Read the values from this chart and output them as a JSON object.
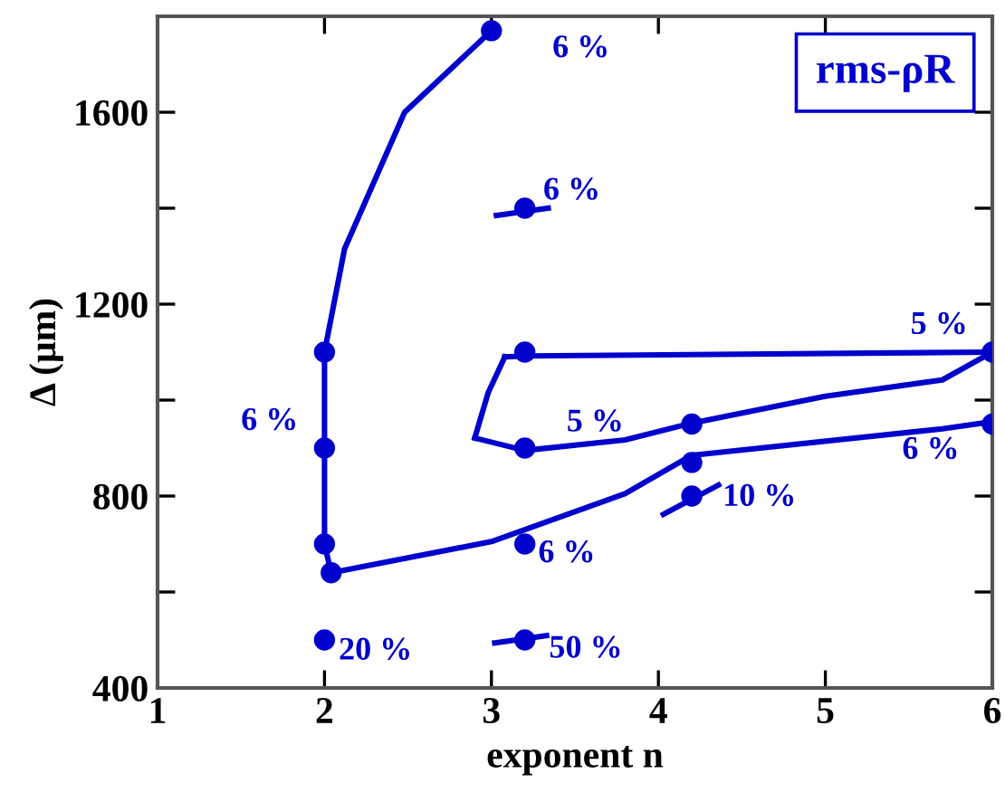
{
  "chart_data": {
    "type": "line",
    "xlabel": "exponent n",
    "ylabel": "Δ (μm)",
    "xlim": [
      1,
      6
    ],
    "ylim": [
      400,
      1800
    ],
    "xticks": [
      1,
      2,
      3,
      4,
      5,
      6
    ],
    "yticks": [
      400,
      {
        "value": 600,
        "label": null
      },
      800,
      {
        "value": 1000,
        "label": null
      },
      1200,
      {
        "value": 1400,
        "label": null
      },
      1600
    ],
    "grid": false,
    "legend": false,
    "series": [
      {
        "color": "#0000cc",
        "x": [
          3.0,
          2.48,
          2.12,
          2.0,
          2.0,
          2.0,
          2.04,
          3.0,
          3.8,
          4.2,
          5.7,
          6.0
        ],
        "values": [
          1770,
          1600,
          1315,
          1100,
          900,
          700,
          640,
          705,
          805,
          885,
          940,
          955
        ]
      },
      {
        "color": "#0000cc",
        "x": [
          3.08,
          3.2,
          6.0
        ],
        "values": [
          1090,
          1092,
          1100
        ]
      },
      {
        "color": "#0000cc",
        "x": [
          2.9,
          2.98,
          3.08
        ],
        "values": [
          921,
          1015,
          1090
        ]
      },
      {
        "color": "#0000cc",
        "x": [
          2.9,
          3.2,
          3.8,
          4.2,
          5.0,
          5.7,
          6.0
        ],
        "values": [
          921,
          895,
          917,
          952,
          1008,
          1042,
          1100
        ]
      },
      {
        "color": "#0000cc",
        "x": [
          3.03,
          3.34
        ],
        "values": [
          1385,
          1400
        ]
      },
      {
        "color": "#0000cc",
        "x": [
          3.02,
          3.33
        ],
        "values": [
          494,
          509
        ]
      },
      {
        "color": "#0000cc",
        "x": [
          4.03,
          4.36
        ],
        "values": [
          762,
          823
        ]
      },
      {
        "type": "scatter",
        "color": "#0000cc",
        "marker": "circle",
        "x": [
          3.0,
          3.2,
          2.0,
          2.0,
          2.0,
          2.04,
          3.2,
          3.2,
          3.2,
          2.0,
          3.2,
          4.2,
          4.2,
          4.2,
          6.0,
          6.0
        ],
        "values": [
          1770,
          1400,
          1100,
          900,
          700,
          640,
          1100,
          900,
          700,
          500,
          500,
          950,
          870,
          800,
          1100,
          950
        ]
      }
    ],
    "annotations": [
      "6 %",
      "6 %",
      "5 %",
      "6 %",
      "5 %",
      "6 %",
      "10 %",
      "6 %",
      "20 %",
      "50 %",
      "rms-ρR"
    ]
  }
}
